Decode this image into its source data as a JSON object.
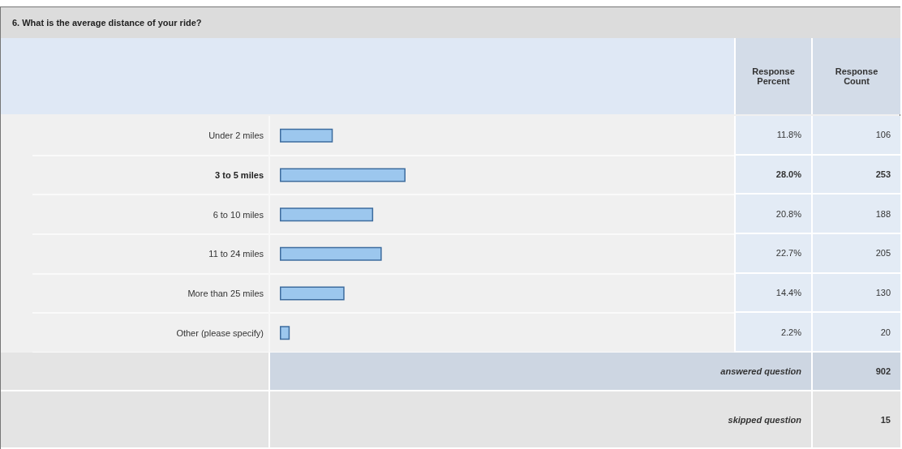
{
  "chart_data": {
    "type": "bar",
    "orientation": "horizontal",
    "title": "6. What is the average distance of your ride?",
    "categories": [
      "Under 2 miles",
      "3 to 5 miles",
      "6 to 10 miles",
      "11 to 24 miles",
      "More than 25 miles",
      "Other (please specify)"
    ],
    "values": [
      11.8,
      28.0,
      20.8,
      22.7,
      14.4,
      2.2
    ],
    "value_labels": [
      "11.8%",
      "28.0%",
      "20.8%",
      "22.7%",
      "14.4%",
      "2.2%"
    ],
    "color": "#9cc7ee",
    "tick_labels": "y",
    "annotations": [
      "Response Percent",
      "Response Count",
      "106",
      "253",
      "188",
      "205",
      "130",
      "20",
      "answered question",
      "902",
      "skipped question",
      "15"
    ]
  }
}
